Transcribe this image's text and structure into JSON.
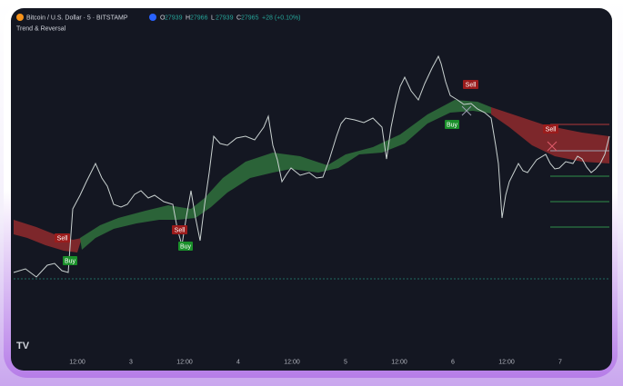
{
  "header": {
    "symbol": "Bitcoin / U.S. Dollar · 5 · BITSTAMP",
    "ohlc": [
      {
        "key": "O",
        "value": "27939"
      },
      {
        "key": "H",
        "value": "27966"
      },
      {
        "key": "L",
        "value": "27939"
      },
      {
        "key": "C",
        "value": "27965"
      }
    ],
    "change": "+28 (+0.10%)",
    "indicator": "Trend & Reversal"
  },
  "signals": [
    "Sell",
    "Buy",
    "Sell",
    "Buy",
    "Sell",
    "Buy",
    "Sell"
  ],
  "time_axis": [
    "12:00",
    "3",
    "12:00",
    "4",
    "12:00",
    "5",
    "12:00",
    "6",
    "12:00",
    "7"
  ]
}
